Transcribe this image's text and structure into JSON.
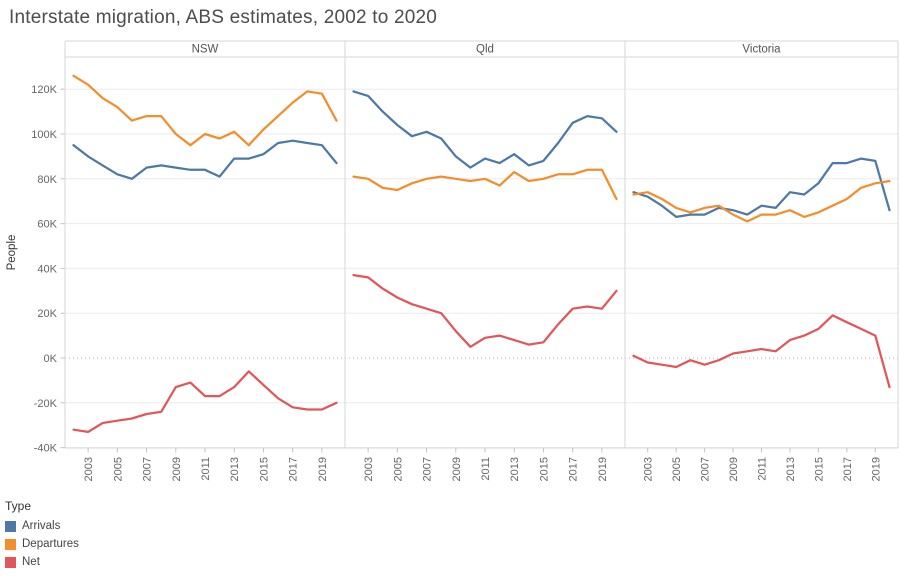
{
  "title": "Interstate migration, ABS estimates, 2002 to 2020",
  "y_axis": {
    "label": "People",
    "tick_labels": [
      "-40K",
      "-20K",
      "0K",
      "20K",
      "40K",
      "60K",
      "80K",
      "100K",
      "120K"
    ],
    "tick_values_thousands": [
      -40,
      -20,
      0,
      20,
      40,
      60,
      80,
      100,
      120
    ]
  },
  "x_axis": {
    "tick_years": [
      2003,
      2005,
      2007,
      2009,
      2011,
      2013,
      2015,
      2017,
      2019
    ]
  },
  "legend": {
    "title": "Type",
    "items": [
      {
        "label": "Arrivals",
        "color": "#4e79a7"
      },
      {
        "label": "Departures",
        "color": "#f28e2b"
      },
      {
        "label": "Net",
        "color": "#e15759"
      }
    ]
  },
  "colors": {
    "grid": "#ebebeb",
    "zero_line": "#b5b5b5",
    "border": "#d7d7d7",
    "tick": "#c4c4c4"
  },
  "chart_data": {
    "type": "line",
    "title": "Interstate migration, ABS estimates, 2002 to 2020",
    "xlabel": "",
    "ylabel": "People",
    "units": "thousands of people",
    "grid": true,
    "legend_position": "bottom-left",
    "ylim_thousands": [
      -45,
      134
    ],
    "x": [
      2002,
      2003,
      2004,
      2005,
      2006,
      2007,
      2008,
      2009,
      2010,
      2011,
      2012,
      2013,
      2014,
      2015,
      2016,
      2017,
      2018,
      2019,
      2020
    ],
    "panels": [
      {
        "name": "NSW",
        "series": [
          {
            "name": "Arrivals",
            "color": "#4e79a7",
            "values_thousands": [
              95,
              90,
              86,
              82,
              80,
              85,
              86,
              85,
              84,
              84,
              81,
              89,
              89,
              91,
              96,
              97,
              96,
              95,
              87
            ]
          },
          {
            "name": "Departures",
            "color": "#f28e2b",
            "values_thousands": [
              126,
              122,
              116,
              112,
              106,
              108,
              108,
              100,
              95,
              100,
              98,
              101,
              95,
              102,
              108,
              114,
              119,
              118,
              106
            ]
          },
          {
            "name": "Net",
            "color": "#e15759",
            "values_thousands": [
              -32,
              -33,
              -29,
              -28,
              -27,
              -25,
              -24,
              -13,
              -11,
              -17,
              -17,
              -13,
              -6,
              -12,
              -18,
              -22,
              -23,
              -23,
              -20
            ]
          }
        ]
      },
      {
        "name": "Qld",
        "series": [
          {
            "name": "Arrivals",
            "color": "#4e79a7",
            "values_thousands": [
              119,
              117,
              110,
              104,
              99,
              101,
              98,
              90,
              85,
              89,
              87,
              91,
              86,
              88,
              96,
              105,
              108,
              107,
              101
            ]
          },
          {
            "name": "Departures",
            "color": "#f28e2b",
            "values_thousands": [
              81,
              80,
              76,
              75,
              78,
              80,
              81,
              80,
              79,
              80,
              77,
              83,
              79,
              80,
              82,
              82,
              84,
              84,
              71
            ]
          },
          {
            "name": "Net",
            "color": "#e15759",
            "values_thousands": [
              37,
              36,
              31,
              27,
              24,
              22,
              20,
              12,
              5,
              9,
              10,
              8,
              6,
              7,
              15,
              22,
              23,
              22,
              30
            ]
          }
        ]
      },
      {
        "name": "Victoria",
        "series": [
          {
            "name": "Arrivals",
            "color": "#4e79a7",
            "values_thousands": [
              74,
              72,
              68,
              63,
              64,
              64,
              67,
              66,
              64,
              68,
              67,
              74,
              73,
              78,
              87,
              87,
              89,
              88,
              66
            ]
          },
          {
            "name": "Departures",
            "color": "#f28e2b",
            "values_thousands": [
              73,
              74,
              71,
              67,
              65,
              67,
              68,
              64,
              61,
              64,
              64,
              66,
              63,
              65,
              68,
              71,
              76,
              78,
              79
            ]
          },
          {
            "name": "Net",
            "color": "#e15759",
            "values_thousands": [
              1,
              -2,
              -3,
              -4,
              -1,
              -3,
              -1,
              2,
              3,
              4,
              3,
              8,
              10,
              13,
              19,
              16,
              13,
              10,
              -13
            ]
          }
        ]
      }
    ]
  }
}
